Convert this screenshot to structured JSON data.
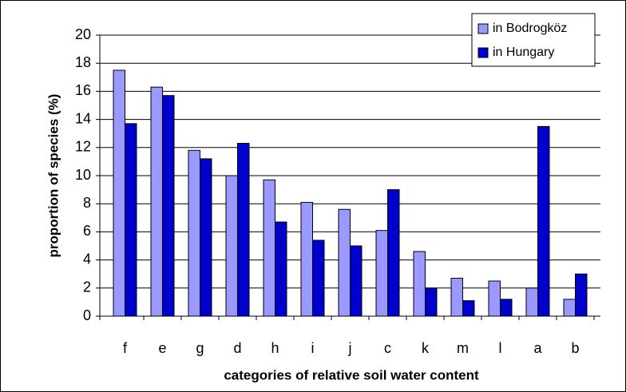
{
  "chart_data": {
    "type": "bar",
    "x_label": "categories of relative soil water content",
    "y_label": "proportion of species (%)",
    "categories": [
      "f",
      "e",
      "g",
      "d",
      "h",
      "i",
      "j",
      "c",
      "k",
      "m",
      "l",
      "a",
      "b"
    ],
    "series": [
      {
        "name": "in Bodrogköz",
        "color": "#9999ff",
        "values": [
          17.5,
          16.3,
          11.8,
          10.0,
          9.7,
          8.1,
          7.6,
          6.1,
          4.6,
          2.7,
          2.5,
          2.0,
          1.2
        ]
      },
      {
        "name": "in Hungary",
        "color": "#0000cc",
        "values": [
          13.7,
          15.7,
          11.2,
          12.3,
          6.7,
          5.4,
          5.0,
          9.0,
          2.0,
          1.1,
          1.2,
          13.5,
          3.0
        ]
      }
    ],
    "ylim": [
      0,
      20
    ],
    "yticks": [
      0,
      2,
      4,
      6,
      8,
      10,
      12,
      14,
      16,
      18,
      20
    ],
    "grid": true,
    "legend": "top-right"
  }
}
